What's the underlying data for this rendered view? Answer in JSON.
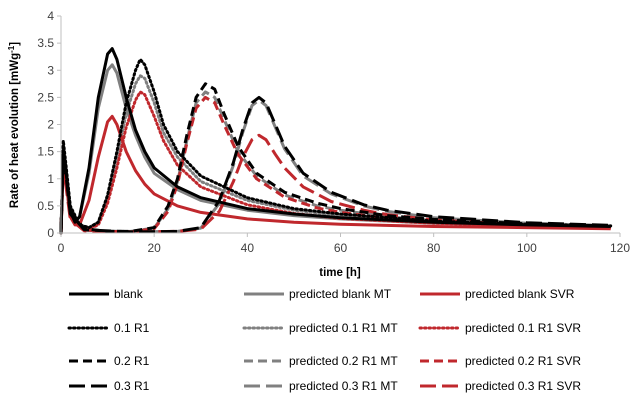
{
  "chart_data": {
    "type": "line",
    "title": "",
    "xlabel": "time [h]",
    "ylabel_main": "Rate of heat evolution [mWg",
    "ylabel_sup": "-1",
    "ylabel_end": "]",
    "xlim": [
      0,
      120
    ],
    "ylim": [
      0,
      4
    ],
    "xticks": [
      "0",
      "20",
      "40",
      "60",
      "80",
      "100",
      "120"
    ],
    "yticks": [
      "0",
      "0.5",
      "1",
      "1.5",
      "2",
      "2.5",
      "3",
      "3.5",
      "4"
    ],
    "grid": false,
    "legend_position": "bottom",
    "colors": {
      "black": "#000000",
      "gray": "#808080",
      "red": "#c0282d"
    },
    "series": [
      {
        "name": "blank",
        "color": "black",
        "dash": "solid",
        "tail": 0.12,
        "points": [
          [
            0,
            0
          ],
          [
            0.5,
            1.5
          ],
          [
            1,
            1.2
          ],
          [
            2,
            0.4
          ],
          [
            3,
            0.2
          ],
          [
            4,
            0.3
          ],
          [
            6,
            1.2
          ],
          [
            8,
            2.5
          ],
          [
            10,
            3.3
          ],
          [
            11,
            3.4
          ],
          [
            12,
            3.2
          ],
          [
            14,
            2.5
          ],
          [
            16,
            1.9
          ],
          [
            18,
            1.5
          ],
          [
            20,
            1.2
          ],
          [
            25,
            0.85
          ],
          [
            30,
            0.65
          ],
          [
            40,
            0.45
          ],
          [
            50,
            0.35
          ],
          [
            60,
            0.28
          ],
          [
            80,
            0.2
          ],
          [
            100,
            0.15
          ],
          [
            118,
            0.12
          ]
        ]
      },
      {
        "name": "0.1 R1",
        "color": "black",
        "dash": "dot",
        "tail": 0.13,
        "points": [
          [
            0,
            0
          ],
          [
            0.5,
            1.7
          ],
          [
            1,
            1.3
          ],
          [
            2,
            0.5
          ],
          [
            4,
            0.15
          ],
          [
            6,
            0.1
          ],
          [
            8,
            0.2
          ],
          [
            10,
            0.7
          ],
          [
            12,
            1.5
          ],
          [
            14,
            2.4
          ],
          [
            16,
            3.0
          ],
          [
            17,
            3.2
          ],
          [
            18,
            3.1
          ],
          [
            20,
            2.6
          ],
          [
            22,
            2.0
          ],
          [
            25,
            1.5
          ],
          [
            30,
            1.05
          ],
          [
            40,
            0.65
          ],
          [
            50,
            0.45
          ],
          [
            60,
            0.35
          ],
          [
            80,
            0.22
          ],
          [
            100,
            0.16
          ],
          [
            118,
            0.13
          ]
        ]
      },
      {
        "name": "0.2 R1",
        "color": "black",
        "dash": "dash",
        "tail": 0.13,
        "points": [
          [
            0,
            0
          ],
          [
            0.5,
            1.6
          ],
          [
            1,
            1.2
          ],
          [
            2,
            0.4
          ],
          [
            5,
            0.08
          ],
          [
            10,
            0.03
          ],
          [
            15,
            0.03
          ],
          [
            20,
            0.1
          ],
          [
            23,
            0.5
          ],
          [
            25,
            1.0
          ],
          [
            27,
            1.8
          ],
          [
            29,
            2.5
          ],
          [
            31,
            2.75
          ],
          [
            33,
            2.65
          ],
          [
            35,
            2.2
          ],
          [
            38,
            1.6
          ],
          [
            42,
            1.1
          ],
          [
            48,
            0.75
          ],
          [
            55,
            0.55
          ],
          [
            60,
            0.45
          ],
          [
            70,
            0.32
          ],
          [
            80,
            0.25
          ],
          [
            100,
            0.17
          ],
          [
            118,
            0.13
          ]
        ]
      },
      {
        "name": "0.3 R1",
        "color": "black",
        "dash": "longdash",
        "tail": 0.14,
        "points": [
          [
            0,
            0
          ],
          [
            0.5,
            1.5
          ],
          [
            1,
            1.1
          ],
          [
            2,
            0.35
          ],
          [
            5,
            0.06
          ],
          [
            15,
            0.02
          ],
          [
            25,
            0.03
          ],
          [
            30,
            0.1
          ],
          [
            34,
            0.6
          ],
          [
            37,
            1.3
          ],
          [
            39,
            1.9
          ],
          [
            41,
            2.4
          ],
          [
            42.5,
            2.5
          ],
          [
            44,
            2.4
          ],
          [
            46,
            2.0
          ],
          [
            48,
            1.6
          ],
          [
            52,
            1.1
          ],
          [
            58,
            0.75
          ],
          [
            65,
            0.52
          ],
          [
            70,
            0.42
          ],
          [
            80,
            0.3
          ],
          [
            100,
            0.19
          ],
          [
            118,
            0.14
          ]
        ]
      },
      {
        "name": "predicted blank MT",
        "color": "gray",
        "dash": "solid",
        "tail": 0.11,
        "points": [
          [
            0,
            0
          ],
          [
            0.5,
            1.4
          ],
          [
            1,
            1.1
          ],
          [
            2,
            0.35
          ],
          [
            3,
            0.2
          ],
          [
            4,
            0.3
          ],
          [
            6,
            1.1
          ],
          [
            8,
            2.3
          ],
          [
            10,
            3.0
          ],
          [
            11,
            3.1
          ],
          [
            12,
            2.95
          ],
          [
            14,
            2.3
          ],
          [
            16,
            1.8
          ],
          [
            18,
            1.4
          ],
          [
            20,
            1.1
          ],
          [
            25,
            0.8
          ],
          [
            30,
            0.6
          ],
          [
            40,
            0.42
          ],
          [
            50,
            0.32
          ],
          [
            60,
            0.26
          ],
          [
            80,
            0.18
          ],
          [
            100,
            0.14
          ],
          [
            118,
            0.11
          ]
        ]
      },
      {
        "name": "predicted 0.1 R1 MT",
        "color": "gray",
        "dash": "dot",
        "tail": 0.12,
        "points": [
          [
            0,
            0
          ],
          [
            0.5,
            1.6
          ],
          [
            1,
            1.2
          ],
          [
            2,
            0.45
          ],
          [
            4,
            0.15
          ],
          [
            6,
            0.1
          ],
          [
            8,
            0.2
          ],
          [
            10,
            0.65
          ],
          [
            12,
            1.4
          ],
          [
            14,
            2.2
          ],
          [
            16,
            2.75
          ],
          [
            17,
            2.9
          ],
          [
            18,
            2.85
          ],
          [
            20,
            2.4
          ],
          [
            22,
            1.85
          ],
          [
            25,
            1.4
          ],
          [
            30,
            0.95
          ],
          [
            40,
            0.6
          ],
          [
            50,
            0.42
          ],
          [
            60,
            0.32
          ],
          [
            80,
            0.21
          ],
          [
            100,
            0.15
          ],
          [
            118,
            0.12
          ]
        ]
      },
      {
        "name": "predicted 0.2 R1 MT",
        "color": "gray",
        "dash": "dash",
        "tail": 0.12,
        "points": [
          [
            0,
            0
          ],
          [
            0.5,
            1.5
          ],
          [
            1,
            1.1
          ],
          [
            2,
            0.35
          ],
          [
            5,
            0.07
          ],
          [
            10,
            0.03
          ],
          [
            15,
            0.03
          ],
          [
            20,
            0.09
          ],
          [
            23,
            0.45
          ],
          [
            25,
            0.95
          ],
          [
            27,
            1.7
          ],
          [
            29,
            2.4
          ],
          [
            31,
            2.6
          ],
          [
            33,
            2.5
          ],
          [
            35,
            2.1
          ],
          [
            38,
            1.5
          ],
          [
            42,
            1.05
          ],
          [
            48,
            0.7
          ],
          [
            55,
            0.5
          ],
          [
            60,
            0.42
          ],
          [
            70,
            0.3
          ],
          [
            80,
            0.23
          ],
          [
            100,
            0.16
          ],
          [
            118,
            0.12
          ]
        ]
      },
      {
        "name": "predicted 0.3 R1 MT",
        "color": "gray",
        "dash": "longdash",
        "tail": 0.13,
        "points": [
          [
            0,
            0
          ],
          [
            0.5,
            1.4
          ],
          [
            1,
            1.0
          ],
          [
            2,
            0.3
          ],
          [
            5,
            0.05
          ],
          [
            15,
            0.02
          ],
          [
            25,
            0.03
          ],
          [
            30,
            0.09
          ],
          [
            34,
            0.55
          ],
          [
            37,
            1.25
          ],
          [
            39,
            1.85
          ],
          [
            41,
            2.35
          ],
          [
            42.5,
            2.45
          ],
          [
            44,
            2.35
          ],
          [
            46,
            1.95
          ],
          [
            48,
            1.55
          ],
          [
            52,
            1.05
          ],
          [
            58,
            0.72
          ],
          [
            65,
            0.5
          ],
          [
            70,
            0.4
          ],
          [
            80,
            0.28
          ],
          [
            100,
            0.18
          ],
          [
            118,
            0.13
          ]
        ]
      },
      {
        "name": "predicted blank SVR",
        "color": "red",
        "dash": "solid",
        "tail": 0.08,
        "points": [
          [
            0,
            0
          ],
          [
            0.5,
            1.3
          ],
          [
            1,
            1.0
          ],
          [
            2,
            0.3
          ],
          [
            3,
            0.15
          ],
          [
            4,
            0.15
          ],
          [
            6,
            0.6
          ],
          [
            8,
            1.4
          ],
          [
            10,
            2.05
          ],
          [
            11,
            2.15
          ],
          [
            12,
            2.0
          ],
          [
            14,
            1.5
          ],
          [
            16,
            1.15
          ],
          [
            18,
            0.9
          ],
          [
            20,
            0.72
          ],
          [
            25,
            0.5
          ],
          [
            30,
            0.38
          ],
          [
            40,
            0.26
          ],
          [
            50,
            0.2
          ],
          [
            60,
            0.16
          ],
          [
            80,
            0.12
          ],
          [
            100,
            0.1
          ],
          [
            118,
            0.08
          ]
        ]
      },
      {
        "name": "predicted 0.1 R1 SVR",
        "color": "red",
        "dash": "dot",
        "tail": 0.1,
        "points": [
          [
            0,
            0
          ],
          [
            0.5,
            1.5
          ],
          [
            1,
            1.1
          ],
          [
            2,
            0.4
          ],
          [
            4,
            0.12
          ],
          [
            6,
            0.08
          ],
          [
            8,
            0.15
          ],
          [
            10,
            0.55
          ],
          [
            12,
            1.2
          ],
          [
            14,
            1.95
          ],
          [
            16,
            2.45
          ],
          [
            17,
            2.6
          ],
          [
            18,
            2.55
          ],
          [
            20,
            2.15
          ],
          [
            22,
            1.7
          ],
          [
            25,
            1.25
          ],
          [
            30,
            0.85
          ],
          [
            40,
            0.52
          ],
          [
            50,
            0.36
          ],
          [
            60,
            0.27
          ],
          [
            80,
            0.18
          ],
          [
            100,
            0.13
          ],
          [
            118,
            0.1
          ]
        ]
      },
      {
        "name": "predicted 0.2 R1 SVR",
        "color": "red",
        "dash": "dash",
        "tail": 0.1,
        "points": [
          [
            0,
            0
          ],
          [
            0.5,
            1.4
          ],
          [
            1,
            1.0
          ],
          [
            2,
            0.3
          ],
          [
            5,
            0.06
          ],
          [
            10,
            0.02
          ],
          [
            15,
            0.02
          ],
          [
            20,
            0.08
          ],
          [
            23,
            0.4
          ],
          [
            25,
            0.9
          ],
          [
            27,
            1.65
          ],
          [
            29,
            2.3
          ],
          [
            31,
            2.5
          ],
          [
            33,
            2.4
          ],
          [
            35,
            2.0
          ],
          [
            38,
            1.45
          ],
          [
            42,
            1.0
          ],
          [
            48,
            0.66
          ],
          [
            55,
            0.46
          ],
          [
            60,
            0.38
          ],
          [
            70,
            0.27
          ],
          [
            80,
            0.2
          ],
          [
            100,
            0.14
          ],
          [
            118,
            0.1
          ]
        ]
      },
      {
        "name": "predicted 0.3 R1 SVR",
        "color": "red",
        "dash": "longdash",
        "tail": 0.1,
        "points": [
          [
            0,
            0
          ],
          [
            0.5,
            1.3
          ],
          [
            1,
            0.9
          ],
          [
            2,
            0.25
          ],
          [
            5,
            0.04
          ],
          [
            15,
            0.02
          ],
          [
            25,
            0.03
          ],
          [
            30,
            0.07
          ],
          [
            34,
            0.4
          ],
          [
            37,
            0.95
          ],
          [
            39,
            1.4
          ],
          [
            41,
            1.72
          ],
          [
            42.5,
            1.8
          ],
          [
            44,
            1.72
          ],
          [
            46,
            1.45
          ],
          [
            48,
            1.2
          ],
          [
            52,
            0.85
          ],
          [
            58,
            0.58
          ],
          [
            65,
            0.42
          ],
          [
            70,
            0.34
          ],
          [
            80,
            0.24
          ],
          [
            100,
            0.15
          ],
          [
            118,
            0.1
          ]
        ]
      }
    ]
  }
}
